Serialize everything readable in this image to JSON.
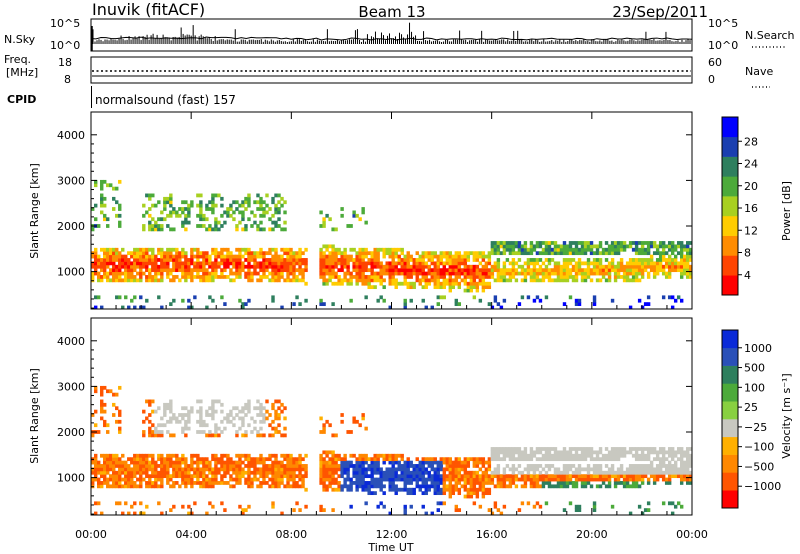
{
  "header": {
    "station": "Inuvik (fitACF)",
    "beam": "Beam 13",
    "date": "23/Sep/2011"
  },
  "strip1": {
    "left_label": "N.Sky",
    "left_ticks": [
      "10^5",
      "10^0"
    ],
    "right_ticks": [
      "10^5",
      "10^0"
    ],
    "right_label": "N.Search"
  },
  "strip2": {
    "left_label_1": "Freq.",
    "left_label_2": "[MHz]",
    "left_ticks": [
      "18",
      "8"
    ],
    "right_ticks": [
      "60",
      "0"
    ],
    "right_label": "Nave"
  },
  "cpid": {
    "label": "CPID",
    "text": "normalsound (fast) 157"
  },
  "chart_data": [
    {
      "type": "heatmap",
      "panel": "power",
      "ylabel": "Slant Range [km]",
      "yticks": [
        "1000",
        "2000",
        "3000",
        "4000"
      ],
      "ylim": [
        180,
        4500
      ],
      "xlim": [
        0,
        24
      ],
      "xticks": [
        "00:00",
        "04:00",
        "08:00",
        "12:00",
        "16:00",
        "20:00",
        "00:00"
      ],
      "colorbar": {
        "label": "Power [dB]",
        "ticks": [
          "4",
          "8",
          "12",
          "16",
          "20",
          "24",
          "28"
        ],
        "colors": [
          "#0000ff",
          "#1a3fb0",
          "#2e7f5e",
          "#4caa3a",
          "#a8d020",
          "#ffcc00",
          "#ff8c00",
          "#ff4400",
          "#ff0000"
        ]
      }
    },
    {
      "type": "heatmap",
      "panel": "velocity",
      "ylabel": "Slant Range [km]",
      "yticks": [
        "1000",
        "2000",
        "3000",
        "4000"
      ],
      "ylim": [
        180,
        4500
      ],
      "xlim": [
        0,
        24
      ],
      "xticks": [
        "00:00",
        "04:00",
        "08:00",
        "12:00",
        "16:00",
        "20:00",
        "00:00"
      ],
      "xlabel": "Time UT",
      "colorbar": {
        "label": "Velocity [m s⁻¹]",
        "ticks": [
          "1000",
          "500",
          "100",
          "25",
          "−25",
          "−100",
          "−500",
          "−1000"
        ],
        "colors": [
          "#0a2ad8",
          "#2a50b8",
          "#2e7f5e",
          "#4caa3a",
          "#88d040",
          "#c8c8c0",
          "#ffb000",
          "#ff8800",
          "#ff5500",
          "#ff0000"
        ]
      }
    }
  ]
}
